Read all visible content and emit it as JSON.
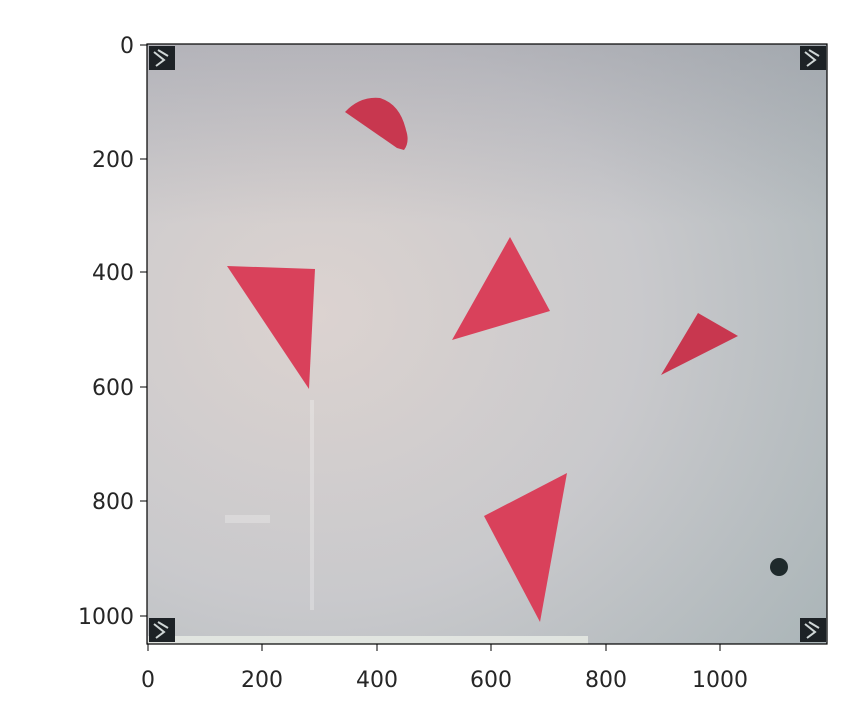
{
  "axes": {
    "x_ticks": [
      "0",
      "200",
      "400",
      "600",
      "800",
      "1000"
    ],
    "y_ticks": [
      "0",
      "200",
      "400",
      "600",
      "800",
      "1000"
    ],
    "x_range": [
      0,
      1189
    ],
    "y_range": [
      0,
      1055
    ]
  },
  "colors": {
    "shape_red": "#c8374f",
    "background_light": "#d2cdcd",
    "dot_dark": "#1f2a2c"
  },
  "icons": [
    "aruco-marker-icon",
    "aruco-marker-icon",
    "aruco-marker-icon",
    "aruco-marker-icon"
  ]
}
